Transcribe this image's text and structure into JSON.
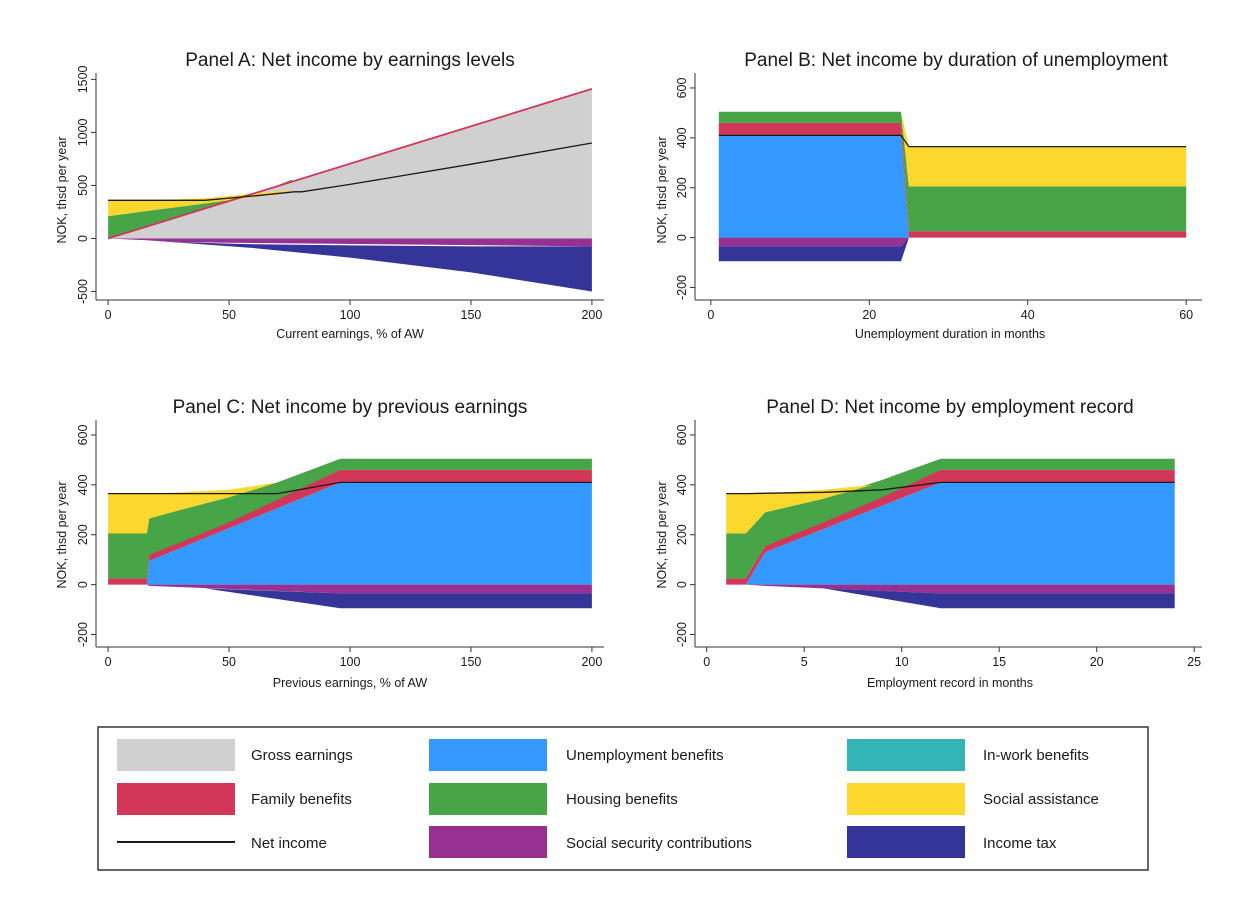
{
  "colors": {
    "gross": "#d0d0d0",
    "unemp": "#3399ff",
    "inwork": "#33b5b5",
    "family": "#d23659",
    "housing": "#47a447",
    "social": "#fcd82e",
    "net": "#1a1a1a",
    "ssc": "#963092",
    "tax": "#353599",
    "gross_edge": "#d23659"
  },
  "legend": {
    "items": [
      {
        "key": "gross",
        "label": "Gross earnings",
        "kind": "box"
      },
      {
        "key": "unemp",
        "label": "Unemployment benefits",
        "kind": "box"
      },
      {
        "key": "inwork",
        "label": "In-work benefits",
        "kind": "box"
      },
      {
        "key": "family",
        "label": "Family benefits",
        "kind": "box"
      },
      {
        "key": "housing",
        "label": "Housing benefits",
        "kind": "box"
      },
      {
        "key": "social",
        "label": "Social assistance",
        "kind": "box"
      },
      {
        "key": "net",
        "label": "Net income",
        "kind": "line"
      },
      {
        "key": "ssc",
        "label": "Social security contributions",
        "kind": "box"
      },
      {
        "key": "tax",
        "label": "Income tax",
        "kind": "box"
      }
    ]
  },
  "chart_data": [
    {
      "type": "area",
      "title": "Panel A: Net income by earnings levels",
      "xlabel": "Current earnings, % of AW",
      "ylabel": "NOK, thsd per year",
      "xlim": [
        -5,
        205
      ],
      "ylim": [
        -580,
        1560
      ],
      "xticks": [
        0,
        50,
        100,
        150,
        200
      ],
      "yticks": [
        -500,
        0,
        500,
        1000,
        1500
      ],
      "series": [
        {
          "key": "gross",
          "name": "Gross earnings",
          "x": [
            0,
            200
          ],
          "lower": [
            0,
            0
          ],
          "upper": [
            0,
            1410
          ]
        },
        {
          "key": "social",
          "name": "Social assistance",
          "x": [
            0,
            10,
            20,
            30,
            40,
            50,
            60,
            70,
            76
          ],
          "lower": [
            210,
            240,
            270,
            300,
            330,
            360,
            390,
            420,
            440
          ],
          "upper": [
            360,
            360,
            360,
            370,
            380,
            400,
            425,
            445,
            450
          ]
        },
        {
          "key": "housing",
          "name": "Housing benefits",
          "x": [
            0,
            10,
            20,
            30,
            40,
            50,
            60,
            70,
            76
          ],
          "lower": [
            0,
            70,
            140,
            210,
            280,
            350,
            420,
            490,
            535
          ],
          "upper": [
            210,
            240,
            270,
            300,
            330,
            360,
            420,
            500,
            555
          ]
        },
        {
          "key": "ssc",
          "name": "Social security contributions",
          "x": [
            0,
            15,
            30,
            200
          ],
          "lower": [
            0,
            -15,
            -35,
            -75
          ],
          "upper": [
            0,
            0,
            0,
            0
          ]
        },
        {
          "key": "tax",
          "name": "Income tax",
          "x": [
            0,
            15,
            30,
            60,
            100,
            150,
            200
          ],
          "lower": [
            0,
            -15,
            -40,
            -90,
            -180,
            -320,
            -500
          ],
          "upper": [
            0,
            -15,
            -35,
            -55,
            -65,
            -75,
            -75
          ]
        }
      ],
      "lines": [
        {
          "key": "gross_edge",
          "x": [
            0,
            200
          ],
          "y": [
            0,
            1410
          ],
          "width": 1.8
        },
        {
          "key": "net",
          "name": "Net income",
          "x": [
            0,
            20,
            40,
            60,
            77,
            80,
            100,
            150,
            200
          ],
          "y": [
            360,
            360,
            360,
            400,
            440,
            440,
            510,
            700,
            900
          ],
          "width": 1.3
        }
      ]
    },
    {
      "type": "area",
      "title": "Panel B: Net income by duration of unemployment",
      "xlabel": "Unemployment duration in months",
      "ylabel": "NOK, thsd per year",
      "xlim": [
        -2,
        62
      ],
      "ylim": [
        -250,
        660
      ],
      "xticks": [
        0,
        20,
        40,
        60
      ],
      "yticks": [
        -200,
        0,
        200,
        400,
        600
      ],
      "series": [
        {
          "key": "unemp",
          "name": "Unemployment benefits",
          "x": [
            1,
            24,
            25
          ],
          "lower": [
            0,
            0,
            0
          ],
          "upper": [
            410,
            410,
            0
          ]
        },
        {
          "key": "family",
          "name": "Family benefits",
          "x": [
            1,
            24,
            25,
            60
          ],
          "lower": [
            410,
            410,
            0,
            0
          ],
          "upper": [
            460,
            460,
            25,
            25
          ]
        },
        {
          "key": "housing",
          "name": "Housing benefits",
          "x": [
            1,
            24,
            25,
            60
          ],
          "lower": [
            460,
            460,
            25,
            25
          ],
          "upper": [
            505,
            505,
            205,
            205
          ]
        },
        {
          "key": "social",
          "name": "Social assistance",
          "x": [
            24,
            25,
            60
          ],
          "lower": [
            505,
            205,
            205
          ],
          "upper": [
            505,
            365,
            365
          ]
        },
        {
          "key": "ssc",
          "name": "Social security contributions",
          "x": [
            1,
            24,
            25
          ],
          "lower": [
            -35,
            -35,
            0
          ],
          "upper": [
            0,
            0,
            0
          ]
        },
        {
          "key": "tax",
          "name": "Income tax",
          "x": [
            1,
            24,
            25
          ],
          "lower": [
            -95,
            -95,
            0
          ],
          "upper": [
            -35,
            -35,
            0
          ]
        }
      ],
      "lines": [
        {
          "key": "net",
          "name": "Net income",
          "x": [
            1,
            24,
            25,
            60
          ],
          "y": [
            410,
            410,
            365,
            365
          ],
          "width": 1.3
        }
      ]
    },
    {
      "type": "area",
      "title": "Panel C: Net income by previous earnings",
      "xlabel": "Previous earnings, % of AW",
      "ylabel": "NOK, thsd per year",
      "xlim": [
        -5,
        205
      ],
      "ylim": [
        -250,
        660
      ],
      "xticks": [
        0,
        50,
        100,
        150,
        200
      ],
      "yticks": [
        -200,
        0,
        200,
        400,
        600
      ],
      "series": [
        {
          "key": "unemp",
          "name": "Unemployment benefits",
          "x": [
            0,
            16,
            17,
            96,
            200
          ],
          "lower": [
            0,
            0,
            0,
            0,
            0
          ],
          "upper": [
            0,
            0,
            95,
            410,
            410
          ]
        },
        {
          "key": "family",
          "name": "Family benefits",
          "x": [
            0,
            16,
            17,
            96,
            200
          ],
          "lower": [
            0,
            0,
            95,
            410,
            410
          ],
          "upper": [
            25,
            25,
            120,
            460,
            460
          ]
        },
        {
          "key": "housing",
          "name": "Housing benefits",
          "x": [
            0,
            16,
            17,
            30,
            50,
            70,
            96,
            200
          ],
          "lower": [
            25,
            25,
            120,
            170,
            250,
            340,
            460,
            460
          ],
          "upper": [
            205,
            205,
            265,
            300,
            350,
            410,
            505,
            505
          ]
        },
        {
          "key": "social",
          "name": "Social assistance",
          "x": [
            0,
            16,
            17,
            30,
            50,
            70
          ],
          "lower": [
            205,
            205,
            265,
            300,
            350,
            410
          ],
          "upper": [
            365,
            365,
            365,
            370,
            380,
            410
          ]
        },
        {
          "key": "ssc",
          "name": "Social security contributions",
          "x": [
            0,
            16,
            17,
            96,
            200
          ],
          "lower": [
            0,
            0,
            -5,
            -35,
            -35
          ],
          "upper": [
            0,
            0,
            0,
            0,
            0
          ]
        },
        {
          "key": "tax",
          "name": "Income tax",
          "x": [
            0,
            16,
            17,
            40,
            96,
            200
          ],
          "lower": [
            0,
            0,
            -5,
            -15,
            -95,
            -95
          ],
          "upper": [
            0,
            0,
            -5,
            -15,
            -35,
            -35
          ]
        }
      ],
      "lines": [
        {
          "key": "net",
          "name": "Net income",
          "x": [
            0,
            16,
            40,
            70,
            96,
            200
          ],
          "y": [
            365,
            365,
            365,
            365,
            410,
            410
          ],
          "width": 1.3
        }
      ]
    },
    {
      "type": "area",
      "title": "Panel D: Net income by employment record",
      "xlabel": "Employment record in months",
      "ylabel": "NOK, thsd per year",
      "xlim": [
        -0.6,
        25.4
      ],
      "ylim": [
        -250,
        660
      ],
      "xticks": [
        0,
        5,
        10,
        15,
        20,
        25
      ],
      "yticks": [
        -200,
        0,
        200,
        400,
        600
      ],
      "series": [
        {
          "key": "unemp",
          "name": "Unemployment benefits",
          "x": [
            1,
            2,
            3,
            12,
            24
          ],
          "lower": [
            0,
            0,
            0,
            0,
            0
          ],
          "upper": [
            0,
            0,
            130,
            410,
            410
          ]
        },
        {
          "key": "family",
          "name": "Family benefits",
          "x": [
            1,
            2,
            3,
            12,
            24
          ],
          "lower": [
            0,
            0,
            130,
            410,
            410
          ],
          "upper": [
            25,
            25,
            155,
            460,
            460
          ]
        },
        {
          "key": "housing",
          "name": "Housing benefits",
          "x": [
            1,
            2,
            3,
            6,
            9,
            12,
            24
          ],
          "lower": [
            25,
            25,
            155,
            250,
            350,
            460,
            460
          ],
          "upper": [
            205,
            205,
            290,
            345,
            420,
            505,
            505
          ]
        },
        {
          "key": "social",
          "name": "Social assistance",
          "x": [
            1,
            2,
            3,
            6,
            8.5
          ],
          "lower": [
            205,
            205,
            290,
            345,
            400
          ],
          "upper": [
            365,
            365,
            365,
            380,
            400
          ]
        },
        {
          "key": "ssc",
          "name": "Social security contributions",
          "x": [
            1,
            2,
            3,
            12,
            24
          ],
          "lower": [
            0,
            0,
            -5,
            -35,
            -35
          ],
          "upper": [
            0,
            0,
            0,
            0,
            0
          ]
        },
        {
          "key": "tax",
          "name": "Income tax",
          "x": [
            1,
            2,
            3,
            6,
            12,
            24
          ],
          "lower": [
            0,
            0,
            -5,
            -15,
            -95,
            -95
          ],
          "upper": [
            0,
            0,
            -5,
            -15,
            -35,
            -35
          ]
        }
      ],
      "lines": [
        {
          "key": "net",
          "name": "Net income",
          "x": [
            1,
            2,
            6,
            9,
            12,
            24
          ],
          "y": [
            365,
            365,
            370,
            380,
            410,
            410
          ],
          "width": 1.3
        }
      ]
    }
  ]
}
